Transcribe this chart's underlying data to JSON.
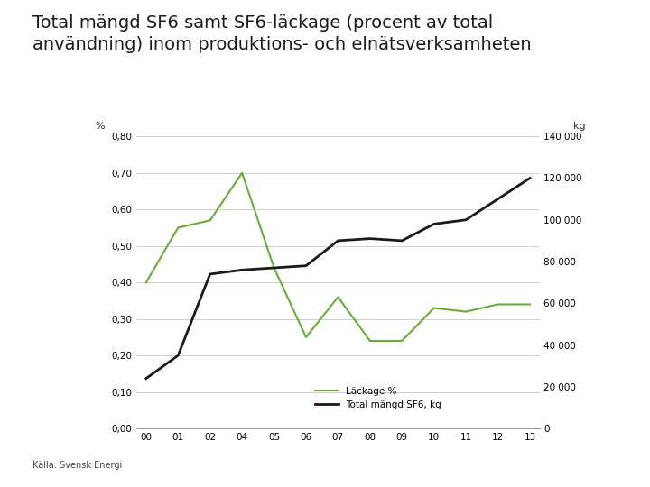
{
  "title": "Total mängd SF6 samt SF6-läckage (procent av total\nanvändning) inom produktions- och elnätsverksamheten",
  "years": [
    "00",
    "01",
    "02",
    "04",
    "05",
    "06",
    "07",
    "08",
    "09",
    "10",
    "11",
    "12",
    "13"
  ],
  "leakage_pct": [
    0.4,
    0.55,
    0.57,
    0.7,
    0.44,
    0.25,
    0.36,
    0.24,
    0.24,
    0.33,
    0.32,
    0.34,
    0.34
  ],
  "total_sf6_kg": [
    24000,
    35000,
    74000,
    76000,
    77000,
    78000,
    90000,
    91000,
    90000,
    98000,
    100000,
    110000,
    120000
  ],
  "left_ylim": [
    0.0,
    0.8
  ],
  "right_ylim": [
    0,
    140000
  ],
  "left_yticks": [
    0.0,
    0.1,
    0.2,
    0.3,
    0.4,
    0.5,
    0.6,
    0.7,
    0.8
  ],
  "right_yticks": [
    0,
    20000,
    40000,
    60000,
    80000,
    100000,
    120000,
    140000
  ],
  "left_ylabel": "%",
  "right_ylabel": "kg",
  "leakage_color": "#6aaa3a",
  "sf6_color": "#1a1a1a",
  "legend_leakage": "Läckage %",
  "legend_sf6": "Total mängd SF6, kg",
  "source": "Källa: Svensk Energi",
  "background_color": "#ffffff",
  "grid_color": "#c8c8c8",
  "title_fontsize": 14,
  "tick_fontsize": 7.5,
  "ylabel_fontsize": 8
}
